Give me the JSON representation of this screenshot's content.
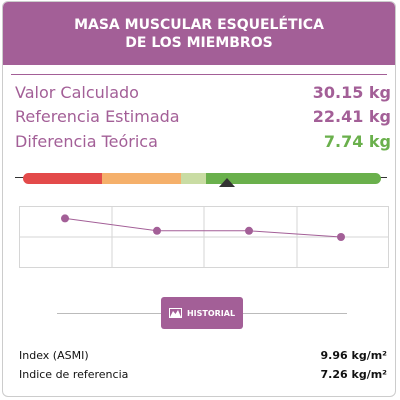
{
  "header": {
    "title_line1": "MASA MUSCULAR ESQUELÉTICA",
    "title_line2": "DE LOS MIEMBROS"
  },
  "metrics": [
    {
      "label": "Valor Calculado",
      "value": "30.15 kg"
    },
    {
      "label": "Referencia Estimada",
      "value": "22.41 kg"
    },
    {
      "label": "Diferencia Teórica",
      "value": "7.74 kg"
    }
  ],
  "scale_bar": {
    "segments": [
      {
        "color": "#e34a4a",
        "share": 0.22
      },
      {
        "color": "#f5b06b",
        "share": 0.22
      },
      {
        "color": "#c9dca3",
        "share": 0.07
      },
      {
        "color": "#6ab04c",
        "share": 0.49
      }
    ],
    "pointer_level": 0.57
  },
  "history_chart": {
    "points": [
      0.8,
      0.6,
      0.6,
      0.5
    ],
    "line_color": "#a35f97"
  },
  "history_button": {
    "label": "HISTORIAL",
    "icon": "mountain-chart-icon"
  },
  "info": [
    {
      "label": "Index (ASMI)",
      "value": "9.96 kg/m²"
    },
    {
      "label": "Indice de referencia",
      "value": "7.26 kg/m²"
    }
  ],
  "colors": {
    "accent": "#a35f97",
    "positive": "#6ab04c"
  }
}
